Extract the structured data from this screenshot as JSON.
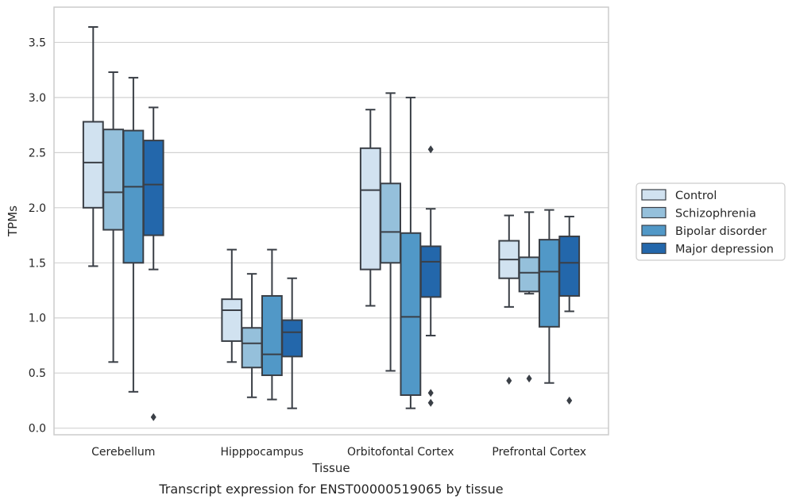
{
  "chart_data": {
    "type": "boxplot",
    "title": "",
    "caption": "Transcript expression for ENST00000519065 by tissue",
    "xlabel": "Tissue",
    "ylabel": "TPMs",
    "ylim": [
      -0.06,
      3.82
    ],
    "yticks": [
      0.0,
      0.5,
      1.0,
      1.5,
      2.0,
      2.5,
      3.0,
      3.5
    ],
    "ytick_labels": [
      "0.0",
      "0.5",
      "1.0",
      "1.5",
      "2.0",
      "2.5",
      "3.0",
      "3.5"
    ],
    "grid": "horizontal",
    "legend_position": "right",
    "categories": [
      "Cerebellum",
      "Hipppocampus",
      "Orbitofontal Cortex",
      "Prefrontal Cortex"
    ],
    "series": [
      {
        "name": "Control",
        "color": "#d1e2f0",
        "boxes": [
          {
            "whislo": 1.47,
            "q1": 2.0,
            "med": 2.41,
            "q3": 2.78,
            "whishi": 3.64,
            "fliers": []
          },
          {
            "whislo": 0.6,
            "q1": 0.79,
            "med": 1.07,
            "q3": 1.17,
            "whishi": 1.62,
            "fliers": []
          },
          {
            "whislo": 1.11,
            "q1": 1.44,
            "med": 2.16,
            "q3": 2.54,
            "whishi": 2.89,
            "fliers": []
          },
          {
            "whislo": 1.1,
            "q1": 1.36,
            "med": 1.53,
            "q3": 1.7,
            "whishi": 1.93,
            "fliers": [
              0.43
            ]
          }
        ]
      },
      {
        "name": "Schizophrenia",
        "color": "#95c0db",
        "boxes": [
          {
            "whislo": 0.6,
            "q1": 1.8,
            "med": 2.14,
            "q3": 2.71,
            "whishi": 3.23,
            "fliers": []
          },
          {
            "whislo": 0.28,
            "q1": 0.55,
            "med": 0.77,
            "q3": 0.91,
            "whishi": 1.4,
            "fliers": []
          },
          {
            "whislo": 0.52,
            "q1": 1.5,
            "med": 1.78,
            "q3": 2.22,
            "whishi": 3.04,
            "fliers": []
          },
          {
            "whislo": 1.22,
            "q1": 1.24,
            "med": 1.41,
            "q3": 1.55,
            "whishi": 1.96,
            "fliers": [
              0.45
            ]
          }
        ]
      },
      {
        "name": "Bipolar disorder",
        "color": "#5198c7",
        "boxes": [
          {
            "whislo": 0.33,
            "q1": 1.5,
            "med": 2.19,
            "q3": 2.7,
            "whishi": 3.18,
            "fliers": []
          },
          {
            "whislo": 0.26,
            "q1": 0.48,
            "med": 0.67,
            "q3": 1.2,
            "whishi": 1.62,
            "fliers": []
          },
          {
            "whislo": 0.18,
            "q1": 0.3,
            "med": 1.01,
            "q3": 1.77,
            "whishi": 3.0,
            "fliers": []
          },
          {
            "whislo": 0.41,
            "q1": 0.92,
            "med": 1.42,
            "q3": 1.71,
            "whishi": 1.98,
            "fliers": []
          }
        ]
      },
      {
        "name": "Major depression",
        "color": "#2367ab",
        "boxes": [
          {
            "whislo": 1.44,
            "q1": 1.75,
            "med": 2.21,
            "q3": 2.61,
            "whishi": 2.91,
            "fliers": [
              0.1
            ]
          },
          {
            "whislo": 0.18,
            "q1": 0.65,
            "med": 0.87,
            "q3": 0.98,
            "whishi": 1.36,
            "fliers": []
          },
          {
            "whislo": 0.84,
            "q1": 1.19,
            "med": 1.51,
            "q3": 1.65,
            "whishi": 1.99,
            "fliers": [
              2.53,
              0.32,
              0.23
            ]
          },
          {
            "whislo": 1.06,
            "q1": 1.2,
            "med": 1.5,
            "q3": 1.74,
            "whishi": 1.92,
            "fliers": [
              0.25
            ]
          }
        ]
      }
    ]
  }
}
